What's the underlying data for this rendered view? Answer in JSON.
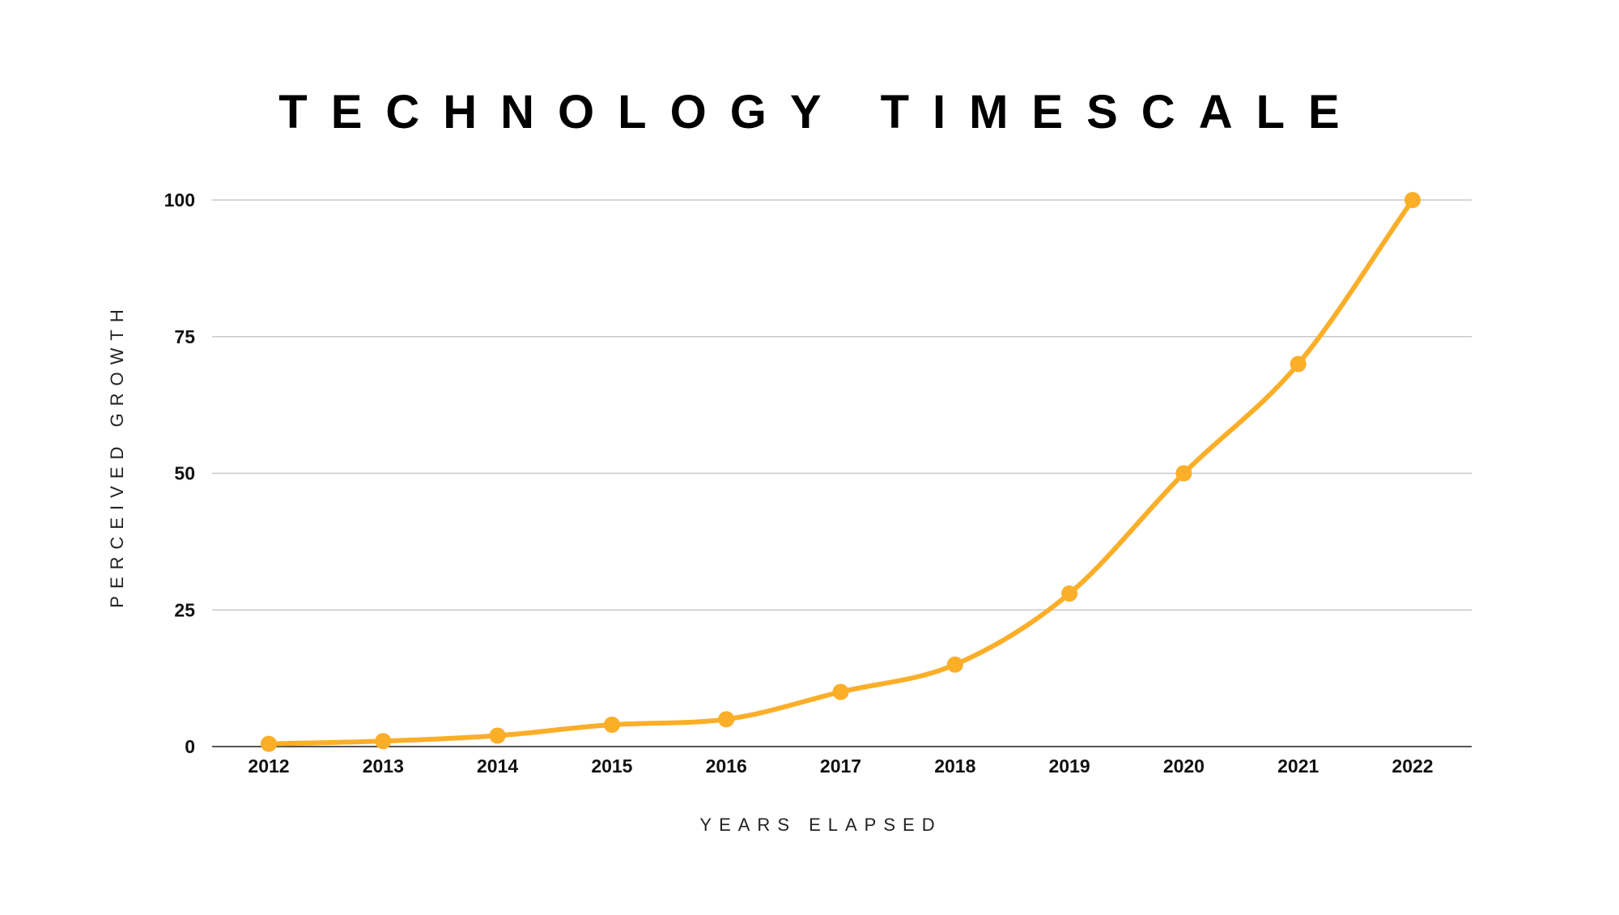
{
  "chart_data": {
    "type": "line",
    "title": "TECHNOLOGY TIMESCALE",
    "xlabel": "YEARS ELAPSED",
    "ylabel": "PERCEIVED GROWTH",
    "categories": [
      "2012",
      "2013",
      "2014",
      "2015",
      "2016",
      "2017",
      "2018",
      "2019",
      "2020",
      "2021",
      "2022"
    ],
    "y_ticks": [
      "0",
      "25",
      "50",
      "75",
      "100"
    ],
    "ylim": [
      0,
      100
    ],
    "grid": true,
    "legend": "none",
    "series": [
      {
        "values": [
          0.5,
          1,
          2,
          4,
          5,
          10,
          15,
          28,
          50,
          70,
          100
        ],
        "color": "#FBAE28",
        "smooth": true,
        "markers": true
      }
    ],
    "colors": {
      "line": "#FBAE28",
      "grid": "#C8C8C8",
      "baseline": "#555555"
    }
  }
}
